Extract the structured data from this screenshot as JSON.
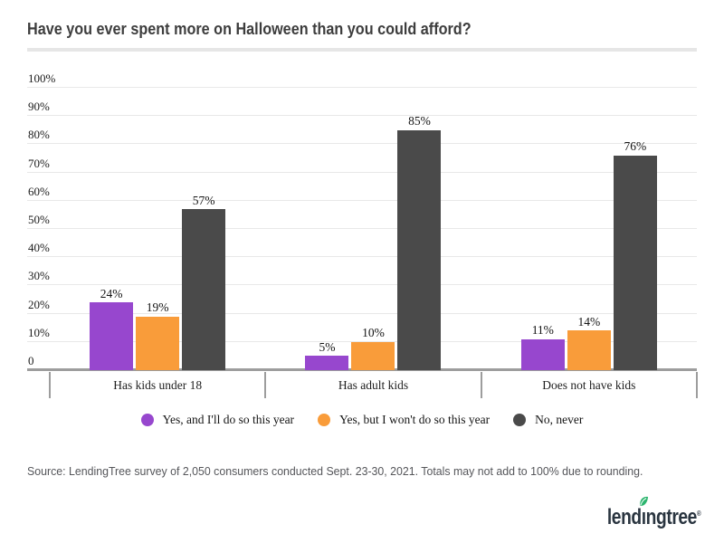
{
  "header": {
    "title": "Have you ever spent more on Halloween than you could afford?"
  },
  "chart_data": {
    "type": "bar",
    "title": "Have you ever spent more on Halloween than you could afford?",
    "categories": [
      "Has kids under 18",
      "Has adult kids",
      "Does not have kids"
    ],
    "series": [
      {
        "name": "Yes, and I'll do so this year",
        "color": "#9747CE",
        "values": [
          24,
          5,
          11
        ]
      },
      {
        "name": "Yes, but I won't do so this year",
        "color": "#F99C3A",
        "values": [
          19,
          10,
          14
        ]
      },
      {
        "name": "No, never",
        "color": "#4A4A4A",
        "values": [
          57,
          85,
          76
        ]
      }
    ],
    "value_suffix": "%",
    "xlabel": "",
    "ylabel": "",
    "ylim": [
      0,
      100
    ],
    "yticks": [
      {
        "label": "100%",
        "value": 100
      },
      {
        "label": "90%",
        "value": 90
      },
      {
        "label": "80%",
        "value": 80
      },
      {
        "label": "70%",
        "value": 70
      },
      {
        "label": "60%",
        "value": 60
      },
      {
        "label": "50%",
        "value": 50
      },
      {
        "label": "40%",
        "value": 40
      },
      {
        "label": "30%",
        "value": 30
      },
      {
        "label": "20%",
        "value": 20
      },
      {
        "label": "10%",
        "value": 10
      },
      {
        "label": "0",
        "value": 0
      }
    ],
    "grid": true,
    "legend_position": "bottom"
  },
  "footer": {
    "source": "Source: LendingTree survey of 2,050 consumers conducted Sept. 23-30, 2021. Totals may not add to 100% due to rounding."
  },
  "branding": {
    "logo_text": "lendingtree",
    "logo_render_pre": "lend",
    "logo_render_i": "ı",
    "logo_render_post": "ngtree",
    "registered_mark": "®",
    "logo_color": "#2a3540",
    "leaf_color": "#2CB56E"
  }
}
